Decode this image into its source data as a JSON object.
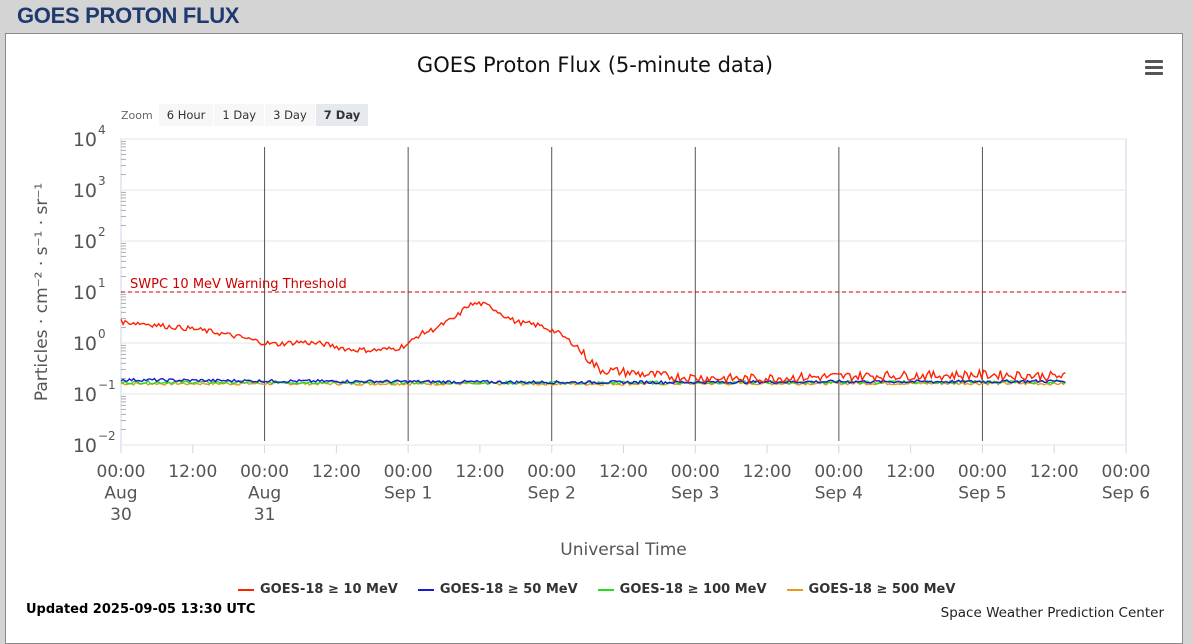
{
  "page": {
    "header": "GOES PROTON FLUX"
  },
  "zoom": {
    "label": "Zoom",
    "options": [
      "6 Hour",
      "1 Day",
      "3 Day",
      "7 Day"
    ],
    "active": "7 Day"
  },
  "footer": {
    "updated": "Updated 2025-09-05 13:30 UTC",
    "credit": "Space Weather Prediction Center"
  },
  "chart_data": {
    "type": "line",
    "title": "GOES Proton Flux (5-minute data)",
    "xlabel": "Universal Time",
    "ylabel": "Particles · cm⁻² · s⁻¹ · sr⁻¹",
    "yscale": "log",
    "ylim": [
      0.01,
      10000
    ],
    "y_ticks": [
      {
        "base": "10",
        "exp": "4",
        "value": 10000
      },
      {
        "base": "10",
        "exp": "3",
        "value": 1000
      },
      {
        "base": "10",
        "exp": "2",
        "value": 100
      },
      {
        "base": "10",
        "exp": "1",
        "value": 10
      },
      {
        "base": "10",
        "exp": "0",
        "value": 1
      },
      {
        "base": "10",
        "exp": "−1",
        "value": 0.1
      },
      {
        "base": "10",
        "exp": "−2",
        "value": 0.01
      }
    ],
    "xlim": [
      "2025-08-30 00:00",
      "2025-09-06 00:00"
    ],
    "x_ticks": [
      {
        "hour": 0,
        "lines": [
          "00:00",
          "Aug",
          "30"
        ]
      },
      {
        "hour": 12,
        "lines": [
          "12:00"
        ]
      },
      {
        "hour": 24,
        "lines": [
          "00:00",
          "Aug",
          "31"
        ]
      },
      {
        "hour": 36,
        "lines": [
          "12:00"
        ]
      },
      {
        "hour": 48,
        "lines": [
          "00:00",
          "Sep 1"
        ]
      },
      {
        "hour": 60,
        "lines": [
          "12:00"
        ]
      },
      {
        "hour": 72,
        "lines": [
          "00:00",
          "Sep 2"
        ]
      },
      {
        "hour": 84,
        "lines": [
          "12:00"
        ]
      },
      {
        "hour": 96,
        "lines": [
          "00:00",
          "Sep 3"
        ]
      },
      {
        "hour": 108,
        "lines": [
          "12:00"
        ]
      },
      {
        "hour": 120,
        "lines": [
          "00:00",
          "Sep 4"
        ]
      },
      {
        "hour": 132,
        "lines": [
          "12:00"
        ]
      },
      {
        "hour": 144,
        "lines": [
          "00:00",
          "Sep 5"
        ]
      },
      {
        "hour": 156,
        "lines": [
          "12:00"
        ]
      },
      {
        "hour": 168,
        "lines": [
          "00:00",
          "Sep 6"
        ]
      }
    ],
    "day_lines": [
      24,
      48,
      72,
      96,
      120,
      144
    ],
    "threshold": {
      "label": "SWPC 10 MeV Warning Threshold",
      "value": 10,
      "color": "#cc0000"
    },
    "grid": true,
    "legend_position": "bottom",
    "series": [
      {
        "name": "GOES-18 ≥ 10 MeV",
        "color": "#ff2200",
        "points": [
          [
            0,
            2.6
          ],
          [
            4,
            2.4
          ],
          [
            8,
            2.1
          ],
          [
            12,
            1.9
          ],
          [
            16,
            1.6
          ],
          [
            20,
            1.3
          ],
          [
            24,
            1.0
          ],
          [
            26,
            0.95
          ],
          [
            30,
            1.05
          ],
          [
            34,
            0.95
          ],
          [
            38,
            0.75
          ],
          [
            42,
            0.72
          ],
          [
            46,
            0.78
          ],
          [
            48,
            0.95
          ],
          [
            50,
            1.5
          ],
          [
            52,
            1.8
          ],
          [
            56,
            3.2
          ],
          [
            58,
            5.5
          ],
          [
            60,
            6.0
          ],
          [
            62,
            5.0
          ],
          [
            64,
            3.5
          ],
          [
            66,
            2.6
          ],
          [
            70,
            2.2
          ],
          [
            73,
            1.6
          ],
          [
            76,
            0.9
          ],
          [
            78,
            0.5
          ],
          [
            80,
            0.3
          ],
          [
            84,
            0.27
          ],
          [
            88,
            0.24
          ],
          [
            92,
            0.22
          ],
          [
            96,
            0.21
          ],
          [
            104,
            0.2
          ],
          [
            112,
            0.21
          ],
          [
            120,
            0.22
          ],
          [
            128,
            0.23
          ],
          [
            136,
            0.23
          ],
          [
            144,
            0.24
          ],
          [
            152,
            0.23
          ],
          [
            158,
            0.22
          ]
        ]
      },
      {
        "name": "GOES-18 ≥ 50 MeV",
        "color": "#1a1ad6",
        "points": [
          [
            0,
            0.19
          ],
          [
            24,
            0.18
          ],
          [
            48,
            0.175
          ],
          [
            72,
            0.17
          ],
          [
            96,
            0.17
          ],
          [
            120,
            0.175
          ],
          [
            144,
            0.175
          ],
          [
            158,
            0.18
          ]
        ]
      },
      {
        "name": "GOES-18 ≥ 100 MeV",
        "color": "#22dd22",
        "points": [
          [
            0,
            0.17
          ],
          [
            24,
            0.17
          ],
          [
            48,
            0.168
          ],
          [
            72,
            0.165
          ],
          [
            96,
            0.168
          ],
          [
            120,
            0.17
          ],
          [
            144,
            0.172
          ],
          [
            158,
            0.172
          ]
        ]
      },
      {
        "name": "GOES-18 ≥ 500 MeV",
        "color": "#e89a1a",
        "points": [
          [
            0,
            0.16
          ],
          [
            24,
            0.16
          ],
          [
            48,
            0.16
          ],
          [
            72,
            0.158
          ],
          [
            96,
            0.16
          ],
          [
            120,
            0.162
          ],
          [
            144,
            0.162
          ],
          [
            158,
            0.16
          ]
        ]
      }
    ]
  }
}
